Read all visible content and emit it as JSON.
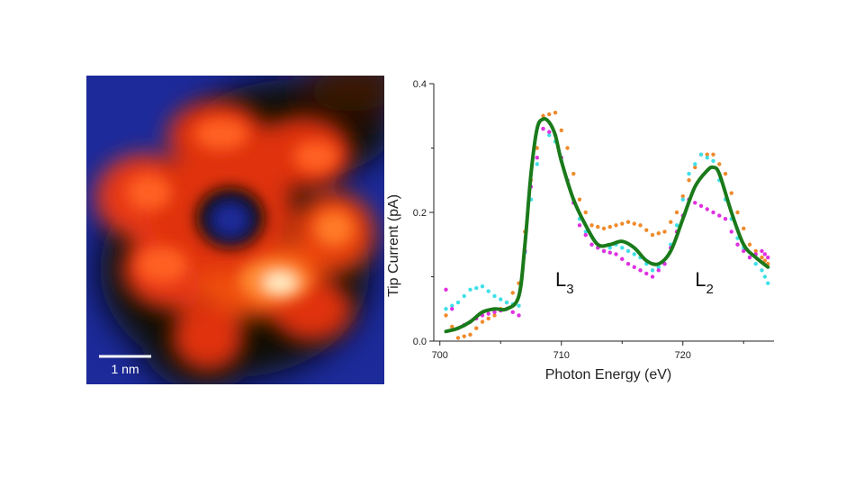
{
  "stm_image": {
    "scale_bar_label": "1 nm",
    "colors": {
      "background": "#1c2a9a",
      "dark": "#0a0804",
      "mid": "#e8280a",
      "bright": "#ff8a33",
      "highlight": "#fff2c8"
    }
  },
  "chart_data": {
    "type": "scatter",
    "xlabel": "Photon Energy (eV)",
    "ylabel": "Tip Current (pA)",
    "xlim": [
      699.5,
      727.5
    ],
    "ylim": [
      0.0,
      0.4
    ],
    "x_ticks": [
      700,
      710,
      720
    ],
    "x_tick_labels": [
      "700",
      "710",
      "720"
    ],
    "y_ticks": [
      0.0,
      0.2,
      0.4
    ],
    "y_tick_labels": [
      "0.0",
      "0.2",
      "0.4"
    ],
    "annotations": [
      {
        "main": "L",
        "sub": "3",
        "x": 709.5,
        "y": 0.085
      },
      {
        "main": "L",
        "sub": "2",
        "x": 721.0,
        "y": 0.085
      }
    ],
    "series": [
      {
        "style": "dots",
        "color": "#f08a2a",
        "x": [
          700.5,
          701.5,
          702.5,
          703.5,
          704.5,
          705.5,
          706.5,
          707.5,
          708.5,
          709.5,
          710.5,
          711.5,
          712.5,
          713.5,
          714.5,
          715.5,
          716.5,
          717.5,
          718.5,
          719.5,
          720.5,
          721.5,
          722.5,
          723.5,
          724.5,
          725.5,
          726.5,
          727.0
        ],
        "values": [
          0.04,
          0.005,
          0.01,
          0.03,
          0.04,
          0.06,
          0.09,
          0.25,
          0.35,
          0.355,
          0.3,
          0.22,
          0.18,
          0.175,
          0.18,
          0.185,
          0.18,
          0.165,
          0.17,
          0.2,
          0.25,
          0.29,
          0.29,
          0.26,
          0.2,
          0.15,
          0.13,
          0.12
        ]
      },
      {
        "style": "dots",
        "color": "#3fe0e8",
        "x": [
          700.5,
          701.5,
          702.5,
          703.5,
          704.5,
          705.5,
          706.5,
          707.5,
          708.5,
          709.5,
          710.5,
          711.5,
          712.5,
          713.5,
          714.5,
          715.5,
          716.5,
          717.5,
          718.5,
          719.5,
          720.5,
          721.5,
          722.5,
          723.5,
          724.5,
          725.5,
          726.5,
          727.0
        ],
        "values": [
          0.05,
          0.06,
          0.08,
          0.085,
          0.07,
          0.06,
          0.055,
          0.22,
          0.33,
          0.31,
          0.25,
          0.19,
          0.15,
          0.14,
          0.15,
          0.14,
          0.13,
          0.11,
          0.12,
          0.18,
          0.26,
          0.29,
          0.28,
          0.22,
          0.16,
          0.13,
          0.11,
          0.09
        ]
      },
      {
        "style": "dots",
        "color": "#e030e0",
        "x": [
          700.5,
          701.5,
          702.5,
          703.5,
          704.5,
          705.5,
          706.5,
          707.5,
          708.5,
          709.5,
          710.5,
          711.5,
          712.5,
          713.5,
          714.5,
          715.5,
          716.5,
          717.5,
          718.5,
          719.5,
          720.5,
          721.5,
          722.5,
          723.5,
          724.5,
          725.5,
          726.5,
          727.0
        ],
        "values": [
          0.08,
          0.02,
          0.03,
          0.04,
          0.045,
          0.05,
          0.04,
          0.24,
          0.33,
          0.32,
          0.25,
          0.18,
          0.15,
          0.14,
          0.135,
          0.12,
          0.11,
          0.1,
          0.12,
          0.17,
          0.22,
          0.21,
          0.2,
          0.19,
          0.15,
          0.13,
          0.14,
          0.13
        ]
      },
      {
        "style": "line",
        "color": "#1a7a1a",
        "x": [
          700.5,
          701.5,
          702.5,
          703.5,
          704.5,
          705.5,
          706.5,
          707.0,
          707.5,
          708.0,
          708.5,
          709.0,
          709.5,
          710.0,
          711.0,
          712.0,
          713.0,
          714.0,
          715.0,
          716.0,
          717.0,
          718.0,
          719.0,
          720.0,
          721.0,
          722.0,
          722.5,
          723.0,
          724.0,
          725.0,
          726.0,
          727.0
        ],
        "values": [
          0.015,
          0.02,
          0.03,
          0.045,
          0.05,
          0.05,
          0.07,
          0.15,
          0.26,
          0.33,
          0.345,
          0.34,
          0.32,
          0.28,
          0.22,
          0.18,
          0.15,
          0.15,
          0.155,
          0.145,
          0.125,
          0.12,
          0.14,
          0.19,
          0.24,
          0.265,
          0.27,
          0.26,
          0.2,
          0.15,
          0.13,
          0.115
        ]
      }
    ]
  }
}
